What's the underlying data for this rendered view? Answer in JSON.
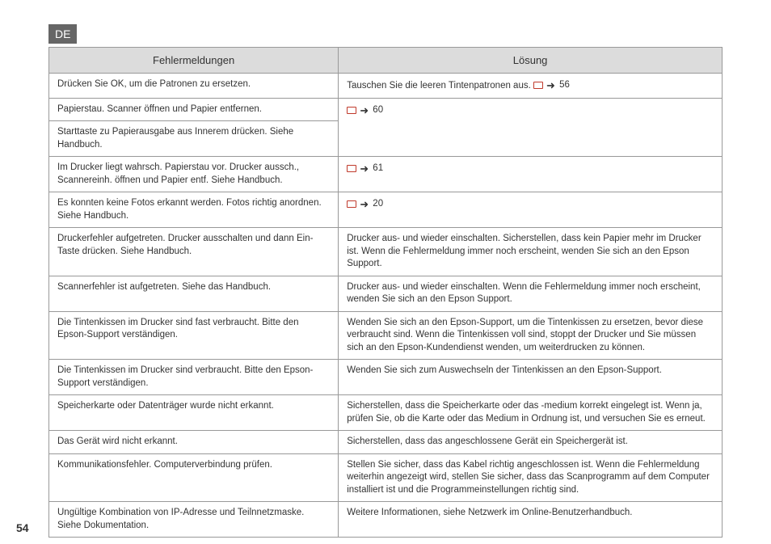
{
  "lang_badge": "DE",
  "page_number": "54",
  "headers": {
    "col1": "Fehlermeldungen",
    "col2": "Lösung"
  },
  "rows": [
    {
      "msg": "Drücken Sie OK, um die Patronen zu ersetzen.",
      "sol_prefix": "Tauschen Sie die leeren Tintenpatronen aus. ",
      "page_ref": "56"
    },
    {
      "msg": "Papierstau. Scanner öffnen und Papier entfernen.",
      "page_ref": "60",
      "rowspan": 2
    },
    {
      "msg": "Starttaste zu Papierausgabe aus Innerem drücken. Siehe Handbuch."
    },
    {
      "msg": "Im Drucker liegt wahrsch. Papierstau vor. Drucker aussch., Scannereinh. öffnen und Papier entf. Siehe Handbuch.",
      "page_ref": "61"
    },
    {
      "msg": "Es konnten keine Fotos erkannt werden. Fotos richtig anordnen. Siehe Handbuch.",
      "page_ref": "20"
    },
    {
      "msg": "Druckerfehler aufgetreten. Drucker ausschalten und dann Ein-Taste drücken. Siehe Handbuch.",
      "sol": "Drucker aus- und wieder einschalten. Sicherstellen, dass kein Papier mehr im Drucker ist. Wenn die Fehlermeldung immer noch erscheint, wenden Sie sich an den Epson Support."
    },
    {
      "msg": "Scannerfehler ist aufgetreten. Siehe das Handbuch.",
      "sol": "Drucker aus- und wieder einschalten. Wenn die Fehlermeldung immer noch erscheint, wenden Sie sich an den Epson Support."
    },
    {
      "msg": "Die Tintenkissen im Drucker sind fast verbraucht. Bitte den Epson-Support verständigen.",
      "sol": "Wenden Sie sich an den Epson-Support, um die Tintenkissen zu ersetzen, bevor diese verbraucht sind. Wenn die Tintenkissen voll sind, stoppt der Drucker und Sie müssen sich an den Epson-Kundendienst wenden, um weiterdrucken zu können."
    },
    {
      "msg": "Die Tintenkissen im Drucker sind verbraucht. Bitte den Epson-Support verständigen.",
      "sol": "Wenden Sie sich zum Auswechseln der Tintenkissen an den Epson-Support."
    },
    {
      "msg": "Speicherkarte oder Datenträger wurde nicht erkannt.",
      "sol": "Sicherstellen, dass die Speicherkarte oder das -medium korrekt eingelegt ist. Wenn ja, prüfen Sie, ob die Karte oder das Medium in Ordnung ist, und versuchen Sie es erneut."
    },
    {
      "msg": "Das Gerät wird nicht erkannt.",
      "sol": "Sicherstellen, dass das angeschlossene Gerät ein Speichergerät ist."
    },
    {
      "msg": "Kommunikationsfehler. Computerverbindung prüfen.",
      "sol": "Stellen Sie sicher, dass das Kabel richtig angeschlossen ist. Wenn die Fehlermeldung weiterhin angezeigt wird, stellen Sie sicher, dass das Scanprogramm auf dem Computer installiert ist und die Programmeinstellungen richtig sind."
    },
    {
      "msg": "Ungültige Kombination von IP-Adresse und Teilnnetzmaske. Siehe Dokumentation.",
      "sol": "Weitere Informationen, siehe Netzwerk im Online-Benutzerhandbuch."
    }
  ]
}
